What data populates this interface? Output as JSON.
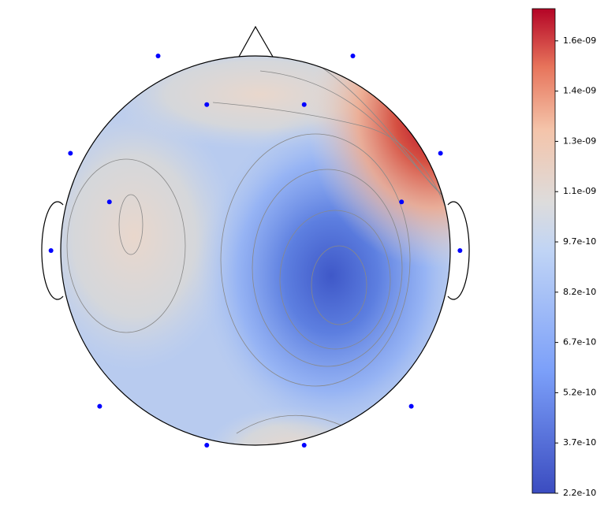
{
  "chart_data": {
    "type": "topomap",
    "sensors": {
      "x": [
        -0.5,
        0.5,
        -0.25,
        0.25,
        -0.95,
        0.95,
        -0.75,
        0.75,
        -1.05,
        1.05,
        -0.8,
        0.8,
        -0.25,
        0.25
      ],
      "y": [
        1.0,
        1.0,
        0.75,
        0.75,
        0.5,
        0.5,
        0.25,
        0.25,
        0,
        0,
        -0.8,
        -0.8,
        -1.0,
        -1.0
      ]
    },
    "sensor_color": "#0000ff",
    "ylim": [
      2.2e-10,
      1.666e-09
    ],
    "yticks": [
      {
        "value": 2.2e-10,
        "label": "2.2e-10"
      },
      {
        "value": 3.7e-10,
        "label": "3.7e-10"
      },
      {
        "value": 5.2e-10,
        "label": "5.2e-10"
      },
      {
        "value": 6.7e-10,
        "label": "6.7e-10"
      },
      {
        "value": 8.2e-10,
        "label": "8.2e-10"
      },
      {
        "value": 9.7e-10,
        "label": "9.7e-10"
      },
      {
        "value": 1.12e-09,
        "label": "1.1e-09"
      },
      {
        "value": 1.27e-09,
        "label": "1.3e-09"
      },
      {
        "value": 1.42e-09,
        "label": "1.4e-09"
      },
      {
        "value": 1.57e-09,
        "label": "1.6e-09"
      }
    ]
  }
}
